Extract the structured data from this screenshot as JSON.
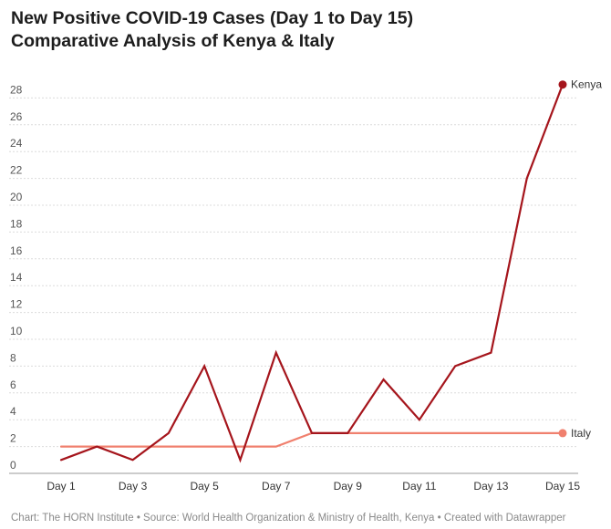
{
  "header": {
    "title_line1": "New Positive COVID-19 Cases (Day 1 to Day 15)",
    "title_line2": "Comparative Analysis of Kenya & Italy"
  },
  "footer": {
    "text": "Chart: The HORN Institute • Source: World Health Organization & Ministry of Health, Kenya • Created with Datawrapper"
  },
  "chart_data": {
    "type": "line",
    "title": "New Positive COVID-19 Cases (Day 1 to Day 15)",
    "subtitle": "Comparative Analysis of Kenya & Italy",
    "x": [
      "Day 1",
      "Day 2",
      "Day 3",
      "Day 4",
      "Day 5",
      "Day 6",
      "Day 7",
      "Day 8",
      "Day 9",
      "Day 10",
      "Day 11",
      "Day 12",
      "Day 13",
      "Day 14",
      "Day 15"
    ],
    "x_tick_labels": [
      "Day 1",
      "Day 3",
      "Day 5",
      "Day 7",
      "Day 9",
      "Day 11",
      "Day 13",
      "Day 15"
    ],
    "y_ticks": [
      0,
      2,
      4,
      6,
      8,
      10,
      12,
      14,
      16,
      18,
      20,
      22,
      24,
      26,
      28
    ],
    "ylim": [
      0,
      29
    ],
    "grid": "horizontal dashed",
    "legend": "direct labels at line ends (right)",
    "series": [
      {
        "name": "Kenya",
        "color": "#a5151c",
        "values": [
          1,
          2,
          1,
          3,
          8,
          1,
          9,
          3,
          3,
          7,
          4,
          8,
          9,
          22,
          29
        ]
      },
      {
        "name": "Italy",
        "color": "#f0806e",
        "values": [
          2,
          2,
          2,
          2,
          2,
          2,
          2,
          3,
          3,
          3,
          3,
          3,
          3,
          3,
          3
        ]
      }
    ]
  }
}
